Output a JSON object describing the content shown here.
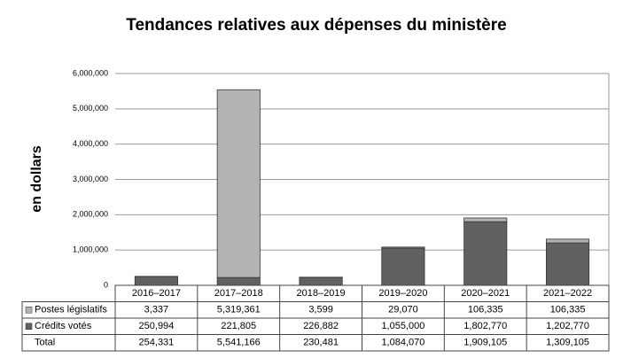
{
  "chart_data": {
    "type": "stacked-bar",
    "title": "Tendances relatives aux dépenses du ministère",
    "y_label": "en dollars",
    "categories": [
      "2016–2017",
      "2017–2018",
      "2018–2019",
      "2019–2020",
      "2020–2021",
      "2021–2022"
    ],
    "series": [
      {
        "name": "Postes législatifs",
        "color": "#b3b3b3",
        "values": [
          3337,
          5319361,
          3599,
          29070,
          106335,
          106335
        ],
        "value_labels": [
          "3,337",
          "5,319,361",
          "3,599",
          "29,070",
          "106,335",
          "106,335"
        ]
      },
      {
        "name": "Crédits votés",
        "color": "#616161",
        "values": [
          250994,
          221805,
          226882,
          1055000,
          1802770,
          1202770
        ],
        "value_labels": [
          "250,994",
          "221,805",
          "226,882",
          "1,055,000",
          "1,802,770",
          "1,202,770"
        ]
      }
    ],
    "total_name": "Total",
    "totals": [
      254331,
      5541166,
      230481,
      1084070,
      1909105,
      1309105
    ],
    "totals_labels": [
      "254,331",
      "5,541,166",
      "230,481",
      "1,084,070",
      "1,909,105",
      "1,309,105"
    ],
    "ylim": [
      0,
      6000000
    ],
    "yticks": [
      0,
      {
        "value": 1000000,
        "label": "1,000,000"
      },
      {
        "value": 2000000,
        "label": "2,000,000"
      },
      {
        "value": 3000000,
        "label": "3,000,000"
      },
      {
        "value": 4000000,
        "label": "4,000,000"
      },
      {
        "value": 5000000,
        "label": "5,000,000"
      },
      {
        "value": 6000000,
        "label": "6,000,000"
      }
    ],
    "grid": true
  }
}
